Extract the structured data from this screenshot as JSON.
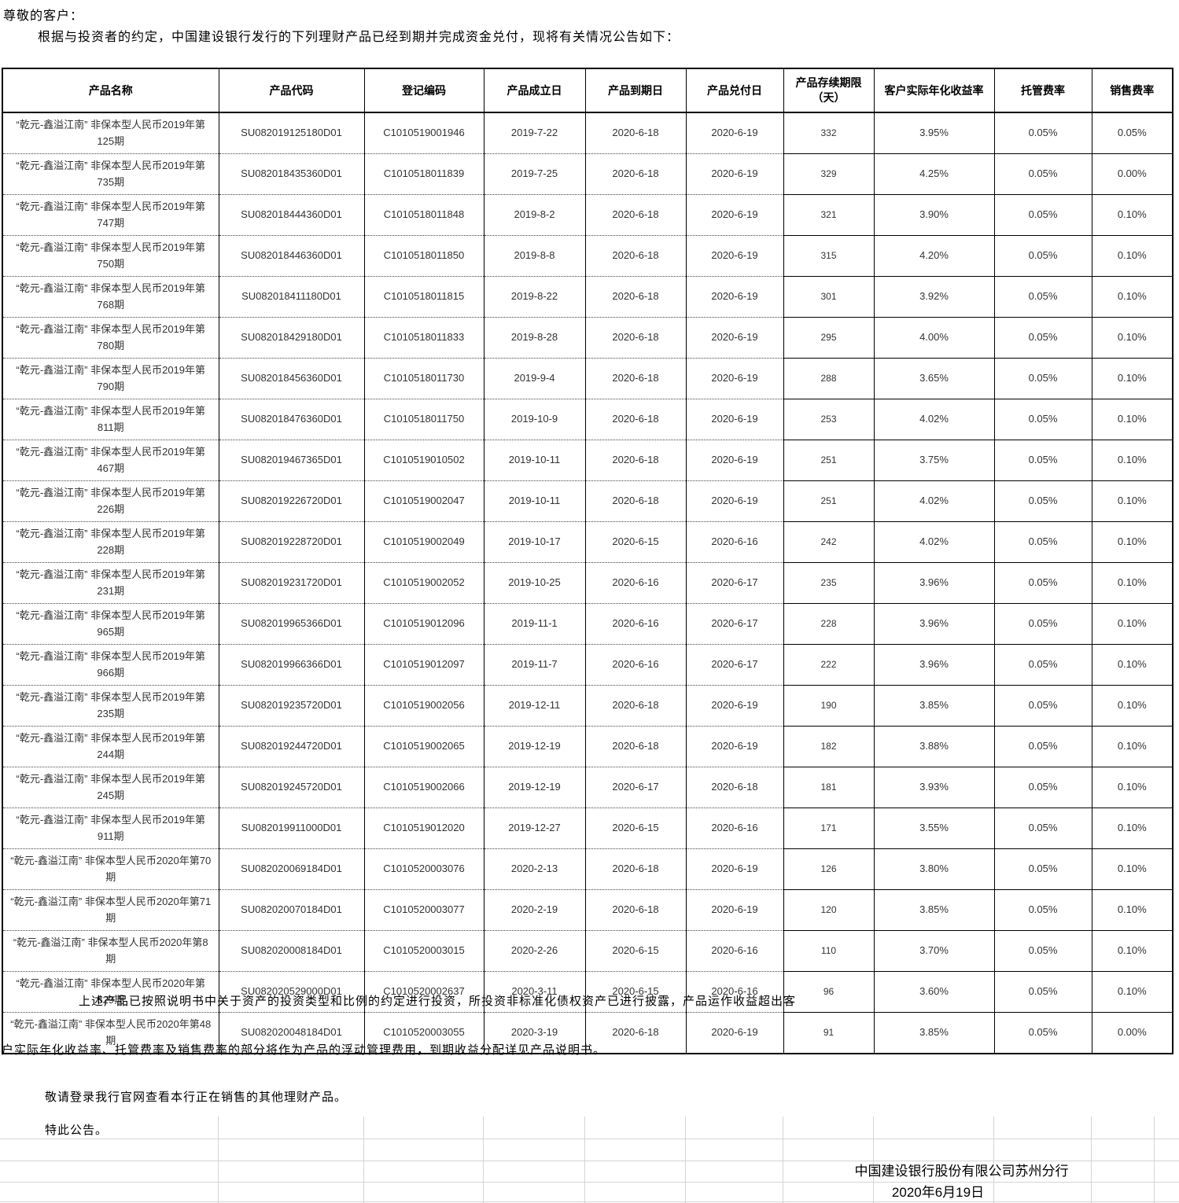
{
  "document": {
    "salutation": "尊敬的客户：",
    "intro": "根据与投资者的约定，中国建设银行发行的下列理财产品已经到期并完成资金兑付，现将有关情况公告如下：",
    "notes": {
      "para1": "上述产品已按照说明书中关于资产的投资类型和比例的约定进行投资，所投资非标准化债权资产已进行披露，产品运作收益超出客",
      "para2": "户实际年化收益率、托管费率及销售费率的部分将作为产品的浮动管理费用，到期收益分配详见产品说明书。",
      "login_note": "敬请登录我行官网查看本行正在销售的其他理财产品。",
      "closing": "特此公告。"
    },
    "signature": {
      "organization": "中国建设银行股份有限公司苏州分行",
      "date": "2020年6月19日"
    }
  },
  "table": {
    "headers": [
      "产品名称",
      "产品代码",
      "登记编码",
      "产品成立日",
      "产品到期日",
      "产品兑付日",
      "产品存续期限（天）",
      "客户实际年化收益率",
      "托管费率",
      "销售费率"
    ],
    "rows": [
      [
        "“乾元-鑫溢江南” 非保本型人民币2019年第125期",
        "SU082019125180D01",
        "C1010519001946",
        "2019-7-22",
        "2020-6-18",
        "2020-6-19",
        "332",
        "3.95%",
        "0.05%",
        "0.05%"
      ],
      [
        "“乾元-鑫溢江南” 非保本型人民币2019年第735期",
        "SU082018435360D01",
        "C1010518011839",
        "2019-7-25",
        "2020-6-18",
        "2020-6-19",
        "329",
        "4.25%",
        "0.05%",
        "0.00%"
      ],
      [
        "“乾元-鑫溢江南” 非保本型人民币2019年第747期",
        "SU082018444360D01",
        "C1010518011848",
        "2019-8-2",
        "2020-6-18",
        "2020-6-19",
        "321",
        "3.90%",
        "0.05%",
        "0.10%"
      ],
      [
        "“乾元-鑫溢江南” 非保本型人民币2019年第750期",
        "SU082018446360D01",
        "C1010518011850",
        "2019-8-8",
        "2020-6-18",
        "2020-6-19",
        "315",
        "4.20%",
        "0.05%",
        "0.10%"
      ],
      [
        "“乾元-鑫溢江南” 非保本型人民币2019年第768期",
        "SU082018411180D01",
        "C1010518011815",
        "2019-8-22",
        "2020-6-18",
        "2020-6-19",
        "301",
        "3.92%",
        "0.05%",
        "0.10%"
      ],
      [
        "“乾元-鑫溢江南” 非保本型人民币2019年第780期",
        "SU082018429180D01",
        "C1010518011833",
        "2019-8-28",
        "2020-6-18",
        "2020-6-19",
        "295",
        "4.00%",
        "0.05%",
        "0.10%"
      ],
      [
        "“乾元-鑫溢江南” 非保本型人民币2019年第790期",
        "SU082018456360D01",
        "C1010518011730",
        "2019-9-4",
        "2020-6-18",
        "2020-6-19",
        "288",
        "3.65%",
        "0.05%",
        "0.10%"
      ],
      [
        "“乾元-鑫溢江南” 非保本型人民币2019年第811期",
        "SU082018476360D01",
        "C1010518011750",
        "2019-10-9",
        "2020-6-18",
        "2020-6-19",
        "253",
        "4.02%",
        "0.05%",
        "0.10%"
      ],
      [
        "“乾元-鑫溢江南” 非保本型人民币2019年第467期",
        "SU082019467365D01",
        "C1010519010502",
        "2019-10-11",
        "2020-6-18",
        "2020-6-19",
        "251",
        "3.75%",
        "0.05%",
        "0.10%"
      ],
      [
        "“乾元-鑫溢江南” 非保本型人民币2019年第226期",
        "SU082019226720D01",
        "C1010519002047",
        "2019-10-11",
        "2020-6-18",
        "2020-6-19",
        "251",
        "4.02%",
        "0.05%",
        "0.10%"
      ],
      [
        "“乾元-鑫溢江南” 非保本型人民币2019年第228期",
        "SU082019228720D01",
        "C1010519002049",
        "2019-10-17",
        "2020-6-15",
        "2020-6-16",
        "242",
        "4.02%",
        "0.05%",
        "0.10%"
      ],
      [
        "“乾元-鑫溢江南” 非保本型人民币2019年第231期",
        "SU082019231720D01",
        "C1010519002052",
        "2019-10-25",
        "2020-6-16",
        "2020-6-17",
        "235",
        "3.96%",
        "0.05%",
        "0.10%"
      ],
      [
        "“乾元-鑫溢江南” 非保本型人民币2019年第965期",
        "SU082019965366D01",
        "C1010519012096",
        "2019-11-1",
        "2020-6-16",
        "2020-6-17",
        "228",
        "3.96%",
        "0.05%",
        "0.10%"
      ],
      [
        "“乾元-鑫溢江南” 非保本型人民币2019年第966期",
        "SU082019966366D01",
        "C1010519012097",
        "2019-11-7",
        "2020-6-16",
        "2020-6-17",
        "222",
        "3.96%",
        "0.05%",
        "0.10%"
      ],
      [
        "“乾元-鑫溢江南” 非保本型人民币2019年第235期",
        "SU082019235720D01",
        "C1010519002056",
        "2019-12-11",
        "2020-6-18",
        "2020-6-19",
        "190",
        "3.85%",
        "0.05%",
        "0.10%"
      ],
      [
        "“乾元-鑫溢江南” 非保本型人民币2019年第244期",
        "SU082019244720D01",
        "C1010519002065",
        "2019-12-19",
        "2020-6-18",
        "2020-6-19",
        "182",
        "3.88%",
        "0.05%",
        "0.10%"
      ],
      [
        "“乾元-鑫溢江南” 非保本型人民币2019年第245期",
        "SU082019245720D01",
        "C1010519002066",
        "2019-12-19",
        "2020-6-17",
        "2020-6-18",
        "181",
        "3.93%",
        "0.05%",
        "0.10%"
      ],
      [
        "“乾元-鑫溢江南” 非保本型人民币2019年第911期",
        "SU082019911000D01",
        "C1010519012020",
        "2019-12-27",
        "2020-6-15",
        "2020-6-16",
        "171",
        "3.55%",
        "0.05%",
        "0.10%"
      ],
      [
        "“乾元-鑫溢江南” 非保本型人民币2020年第70期",
        "SU082020069184D01",
        "C1010520003076",
        "2020-2-13",
        "2020-6-18",
        "2020-6-19",
        "126",
        "3.80%",
        "0.05%",
        "0.10%"
      ],
      [
        "“乾元-鑫溢江南” 非保本型人民币2020年第71期",
        "SU082020070184D01",
        "C1010520003077",
        "2020-2-19",
        "2020-6-18",
        "2020-6-19",
        "120",
        "3.85%",
        "0.05%",
        "0.10%"
      ],
      [
        "“乾元-鑫溢江南” 非保本型人民币2020年第8期",
        "SU082020008184D01",
        "C1010520003015",
        "2020-2-26",
        "2020-6-15",
        "2020-6-16",
        "110",
        "3.70%",
        "0.05%",
        "0.10%"
      ],
      [
        "“乾元-鑫溢江南” 非保本型人民币2020年第529期",
        "SU082020529000D01",
        "C1010520002637",
        "2020-3-11",
        "2020-6-15",
        "2020-6-16",
        "96",
        "3.60%",
        "0.05%",
        "0.10%"
      ],
      [
        "“乾元-鑫溢江南” 非保本型人民币2020年第48期",
        "SU082020048184D01",
        "C1010520003055",
        "2020-3-19",
        "2020-6-18",
        "2020-6-19",
        "91",
        "3.85%",
        "0.05%",
        "0.00%"
      ]
    ]
  },
  "colors": {
    "table_border": "#000000",
    "grid_line": "#d4d4d4",
    "data_text": "#333333"
  }
}
